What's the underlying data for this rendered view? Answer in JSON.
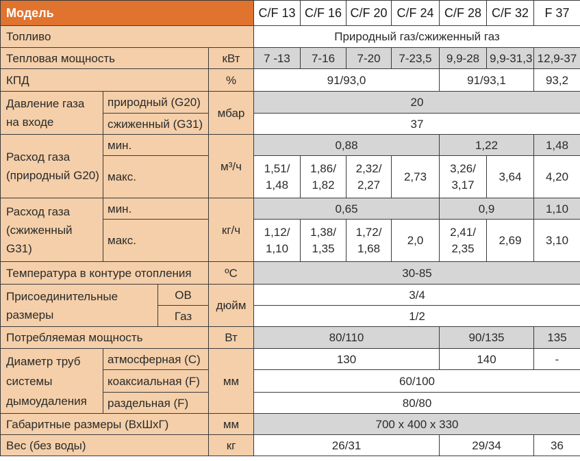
{
  "header": {
    "model_label": "Модель",
    "models": [
      "C/F 13",
      "C/F 16",
      "C/F 20",
      "C/F 24",
      "C/F 28",
      "C/F 32",
      "F 37"
    ]
  },
  "rows": {
    "fuel": {
      "label": "Топливо",
      "value": "Природный газ/сжиженный газ"
    },
    "heat_power": {
      "label": "Тепловая мощность",
      "unit": "кВт",
      "values": [
        "7 -13",
        "7-16",
        "7-20",
        "7-23,5",
        "9,9-28",
        "9,9-31,3",
        "12,9-37"
      ]
    },
    "efficiency": {
      "label": "КПД",
      "unit": "%",
      "values": [
        "91/93,0",
        "91/93,1",
        "93,2"
      ]
    },
    "gas_pressure": {
      "label": "Давление газа на входе",
      "unit": "мбар",
      "natural_label": "природный (G20)",
      "natural_value": "20",
      "lpg_label": "сжиженный (G31)",
      "lpg_value": "37"
    },
    "gas_flow_natural": {
      "label": "Расход газа (природный G20)",
      "unit": "м³/ч",
      "min_label": "мин.",
      "min_values": [
        "0,88",
        "1,22",
        "1,48"
      ],
      "max_label": "макс.",
      "max_values": [
        "1,51/ 1,48",
        "1,86/ 1,82",
        "2,32/ 2,27",
        "2,73",
        "3,26/ 3,17",
        "3,64",
        "4,20"
      ]
    },
    "gas_flow_lpg": {
      "label": "Расход газа (сжиженный G31)",
      "unit": "кг/ч",
      "min_label": "мин.",
      "min_values": [
        "0,65",
        "0,9",
        "1,10"
      ],
      "max_label": "макс.",
      "max_values": [
        "1,12/ 1,10",
        "1,38/ 1,35",
        "1,72/ 1,68",
        "2,0",
        "2,41/ 2,35",
        "2,69",
        "3,10"
      ]
    },
    "heating_temp": {
      "label": "Температура в контуре отопления",
      "unit": "ºC",
      "value": "30-85"
    },
    "connections": {
      "label": "Присоединительные размеры",
      "unit": "дюйм",
      "ov_label": "ОВ",
      "ov_value": "3/4",
      "gas_label": "Газ",
      "gas_value": "1/2"
    },
    "power_consumption": {
      "label": "Потребляемая мощность",
      "unit": "Вт",
      "values": [
        "80/110",
        "90/135",
        "135"
      ]
    },
    "flue_diameter": {
      "label": "Диаметр труб системы дымоудаления",
      "unit": "мм",
      "atm_label": "атмосферная (C)",
      "atm_values": [
        "130",
        "140",
        "-"
      ],
      "coax_label": "коаксиальная (F)",
      "coax_value": "60/100",
      "sep_label": "раздельная (F)",
      "sep_value": "80/80"
    },
    "dimensions": {
      "label": "Габаритные размеры (ВхШхГ)",
      "unit": "мм",
      "value": "700 x 400 x 330"
    },
    "weight": {
      "label": "Вес (без воды)",
      "unit": "кг",
      "values": [
        "26/31",
        "29/34",
        "36"
      ]
    }
  }
}
